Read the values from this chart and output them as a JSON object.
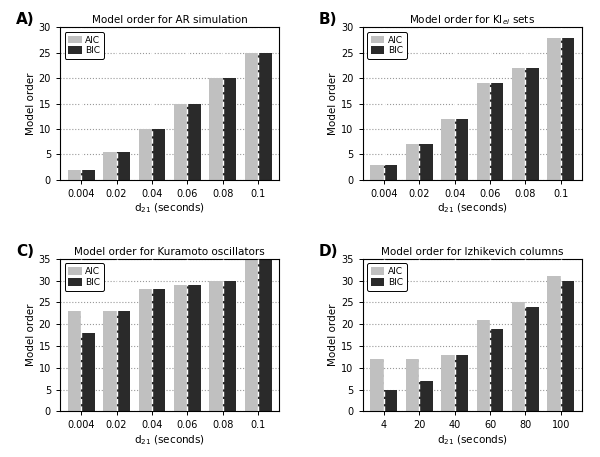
{
  "A": {
    "title": "Model order for AR simulation",
    "xlabel": "d$_{21}$ (seconds)",
    "ylabel": "Model order",
    "xtick_labels": [
      "0.004",
      "0.02",
      "0.04",
      "0.06",
      "0.08",
      "0.1"
    ],
    "AIC": [
      2,
      5.5,
      10,
      15,
      20,
      25
    ],
    "BIC": [
      2,
      5.5,
      10,
      15,
      20,
      25
    ],
    "ylim": [
      0,
      30
    ],
    "yticks": [
      0,
      5,
      10,
      15,
      20,
      25,
      30
    ]
  },
  "B": {
    "title": "Model order for KI$_{ei}$ sets",
    "xlabel": "d$_{21}$ (seconds)",
    "ylabel": "Model order",
    "xtick_labels": [
      "0.004",
      "0.02",
      "0.04",
      "0.06",
      "0.08",
      "0.1"
    ],
    "AIC": [
      3,
      7,
      12,
      19,
      22,
      28
    ],
    "BIC": [
      3,
      7,
      12,
      19,
      22,
      28
    ],
    "ylim": [
      0,
      30
    ],
    "yticks": [
      0,
      5,
      10,
      15,
      20,
      25,
      30
    ]
  },
  "C": {
    "title": "Model order for Kuramoto oscillators",
    "xlabel": "d$_{21}$ (seconds)",
    "ylabel": "Model order",
    "xtick_labels": [
      "0.004",
      "0.02",
      "0.04",
      "0.06",
      "0.08",
      "0.1"
    ],
    "AIC": [
      23,
      23,
      28,
      29,
      30,
      35
    ],
    "BIC": [
      18,
      23,
      28,
      29,
      30,
      35
    ],
    "ylim": [
      0,
      35
    ],
    "yticks": [
      0,
      5,
      10,
      15,
      20,
      25,
      30,
      35
    ]
  },
  "D": {
    "title": "Model order for Izhikevich columns",
    "xlabel": "d$_{21}$ (seconds)",
    "ylabel": "Model order",
    "xtick_labels": [
      "4",
      "20",
      "40",
      "60",
      "80",
      "100"
    ],
    "AIC": [
      12,
      12,
      13,
      21,
      25,
      31
    ],
    "BIC": [
      5,
      7,
      13,
      19,
      24,
      30
    ],
    "ylim": [
      0,
      35
    ],
    "yticks": [
      0,
      5,
      10,
      15,
      20,
      25,
      30,
      35
    ]
  },
  "AIC_color": "#c0c0c0",
  "BIC_color": "#2a2a2a",
  "bg_color": "#ffffff",
  "grid_color": "#999999",
  "vline_color": "#ffffff",
  "bar_width": 0.38
}
